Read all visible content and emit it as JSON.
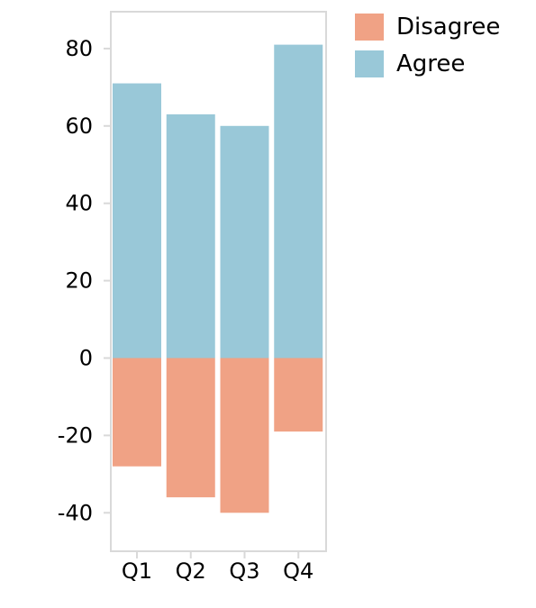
{
  "chart_data": {
    "type": "bar",
    "stacked": true,
    "categories": [
      "Q1",
      "Q2",
      "Q3",
      "Q4"
    ],
    "series": [
      {
        "name": "Disagree",
        "values": [
          -28,
          -36,
          -40,
          -19
        ],
        "color": "#f0a285"
      },
      {
        "name": "Agree",
        "values": [
          71,
          63,
          60,
          81
        ],
        "color": "#99c8d8"
      }
    ],
    "ylim": [
      -50,
      90
    ],
    "yticks": [
      80,
      60,
      40,
      20,
      0,
      -20,
      -40
    ],
    "ytick_labels": [
      "80",
      "60",
      "40",
      "20",
      "0",
      "-20",
      "-40"
    ],
    "grid": false,
    "legend_position": "top-right",
    "legend": [
      "Disagree",
      "Agree"
    ]
  }
}
